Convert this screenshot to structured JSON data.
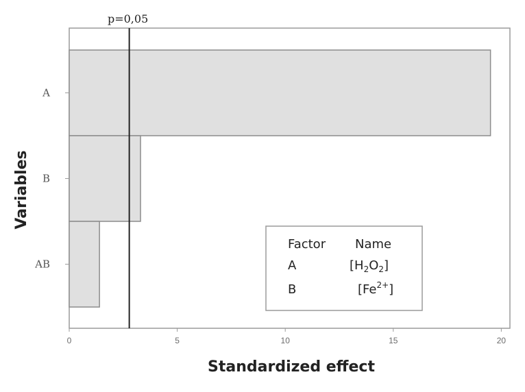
{
  "chart_data": {
    "type": "bar",
    "orientation": "horizontal",
    "title": "",
    "xlabel": "Standardized effect",
    "ylabel": "Variables",
    "categories": [
      "A",
      "B",
      "AB"
    ],
    "values": [
      19.5,
      3.3,
      1.4
    ],
    "xlim": [
      0,
      20.4
    ],
    "xticks": [
      "0",
      "5",
      "10",
      "15",
      "20"
    ],
    "reference_line": {
      "value": 2.78,
      "label": "p=0,05"
    },
    "bar_color": "#e0e0e0",
    "bar_stroke": "#8c8c8c",
    "grid": false,
    "legend": {
      "placement": "bottom-right",
      "header": [
        "Factor",
        "Name"
      ],
      "rows": [
        {
          "factor": "A",
          "name": "[H",
          "name_sub": "2",
          "name_mid": "O",
          "name_sub2": "2",
          "name_end": "]"
        },
        {
          "factor": "B",
          "name": "[Fe",
          "name_sup": "2+",
          "name_end": "]"
        }
      ]
    }
  }
}
